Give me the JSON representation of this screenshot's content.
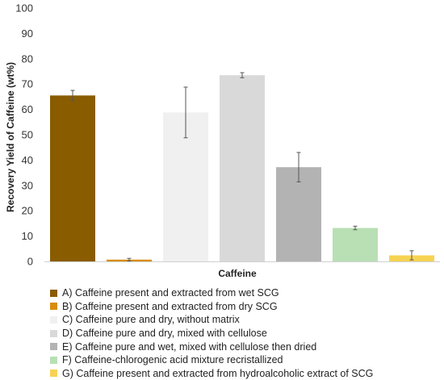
{
  "chart_data": {
    "type": "bar",
    "ylabel": "Recovery Yield of Caffeine (wt%)",
    "xlabel": "Caffeine",
    "ylim": [
      0,
      100
    ],
    "yticks": [
      0,
      10,
      20,
      30,
      40,
      50,
      60,
      70,
      80,
      90,
      100
    ],
    "grid": false,
    "legend_position": "bottom",
    "series": [
      {
        "name": "A) Caffeine present and extracted from wet SCG",
        "value": 65.5,
        "error": 2.0,
        "color": "#8a5c00"
      },
      {
        "name": "B) Caffeine present and extracted from dry SCG",
        "value": 0.7,
        "error": 0.5,
        "color": "#d98c0a"
      },
      {
        "name": "C) Caffeine pure and dry, without matrix",
        "value": 58.8,
        "error": 10.0,
        "color": "#f0f0f0"
      },
      {
        "name": "D) Caffeine pure and dry, mixed with cellulose",
        "value": 73.5,
        "error": 1.0,
        "color": "#d9d9d9"
      },
      {
        "name": "E) Caffeine pure and wet, mixed with cellulose then dried",
        "value": 37.2,
        "error": 5.8,
        "color": "#b3b3b3"
      },
      {
        "name": "F) Caffeine-chlorogenic acid mixture recristallized",
        "value": 13.2,
        "error": 0.7,
        "color": "#b8e0b4"
      },
      {
        "name": "G) Caffeine present and extracted from hydroalcoholic extract of SCG",
        "value": 2.4,
        "error": 1.8,
        "color": "#f7d354"
      }
    ]
  }
}
